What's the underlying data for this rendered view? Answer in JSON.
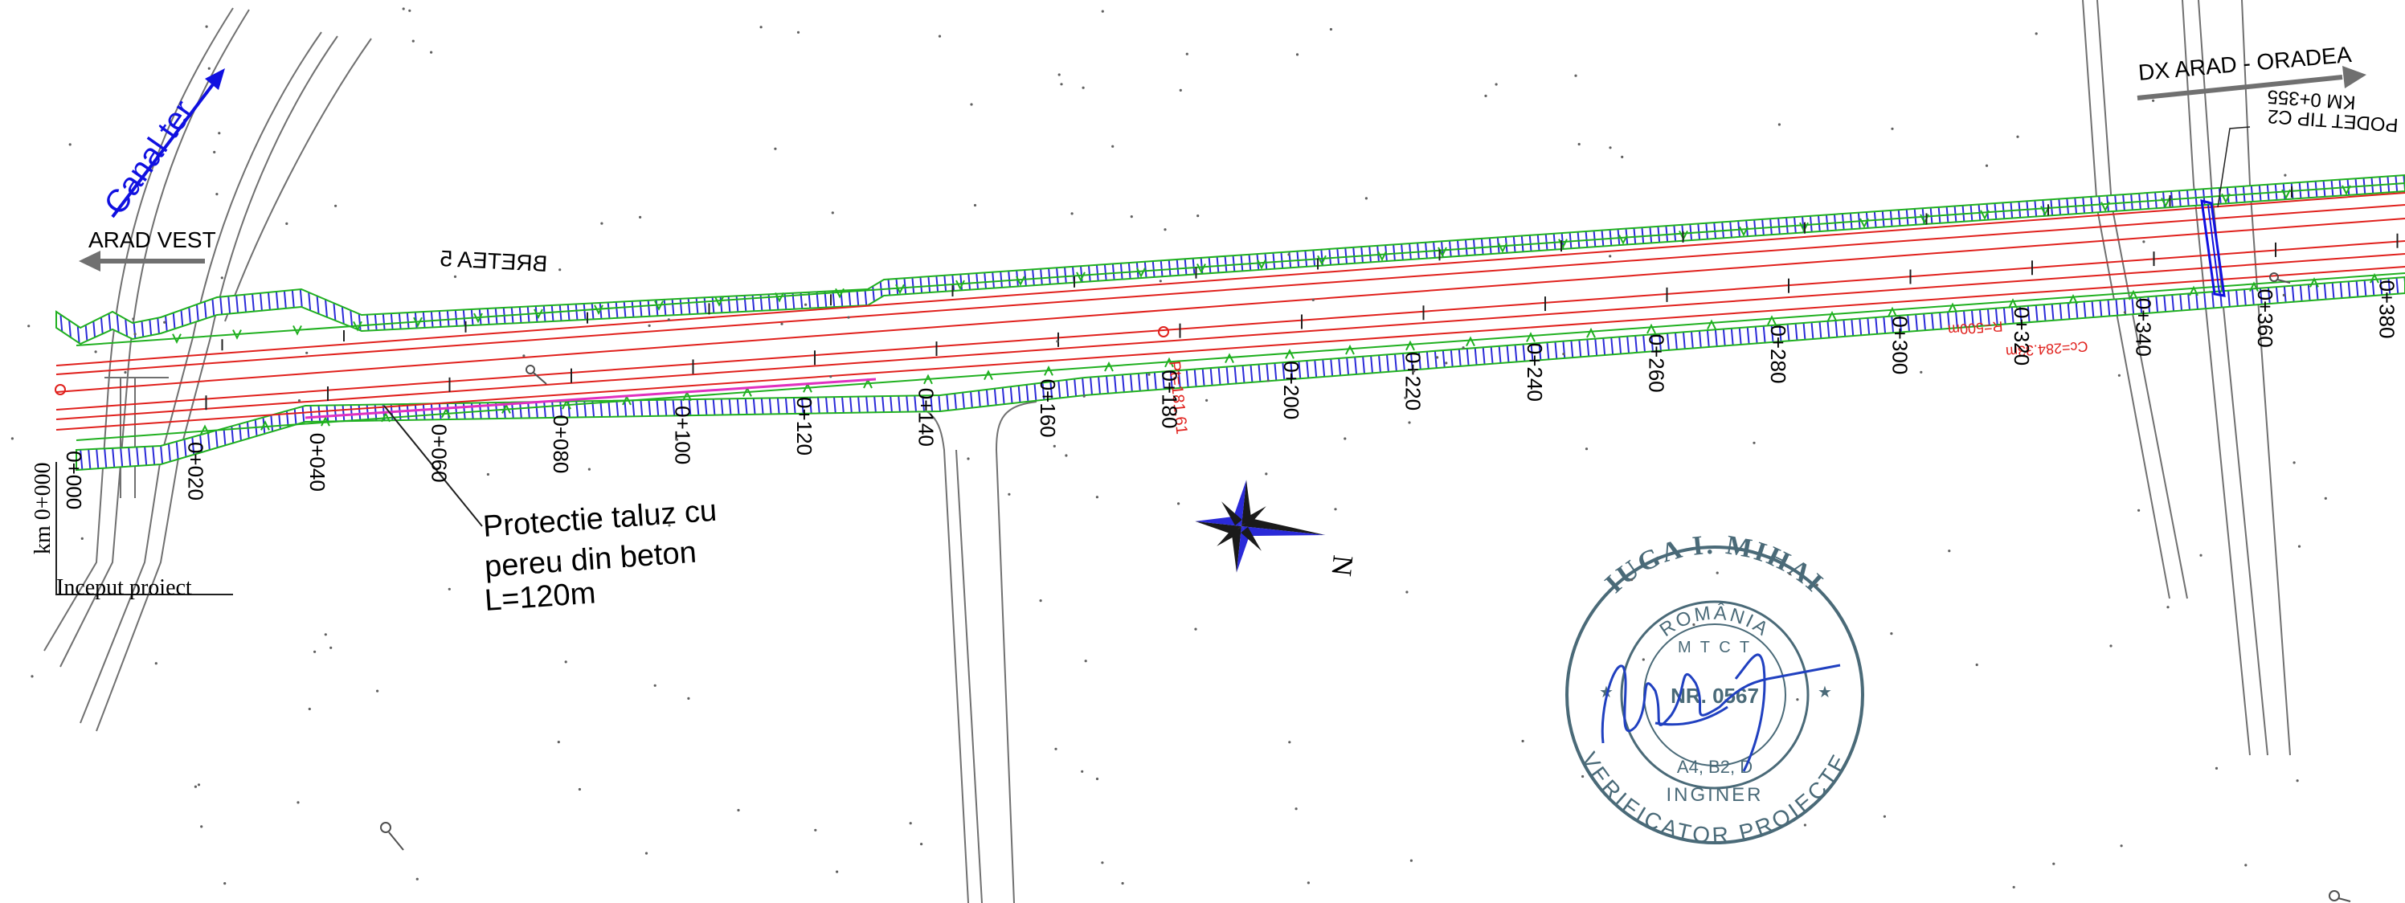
{
  "labels": {
    "canal": "Canal ter",
    "arad_vest": "ARAD VEST",
    "bretea": "BRETEA 5",
    "dx": "DX ARAD - ORADEA",
    "podet_line1": "PODET TIP C2",
    "podet_line2": "KM 0+355",
    "km_start": "km 0+000",
    "inceput": "Inceput proiect",
    "protectie_line1": "Protectie taluz cu",
    "protectie_line2": "pereu din beton",
    "protectie_line3": "L=120m",
    "north": "N",
    "curve_r": "R=500m",
    "curve_cc": "Cc=284.33m",
    "pt_label": "Pt=181.61"
  },
  "chainage": [
    "0+000",
    "0+020",
    "0+040",
    "0+060",
    "0+080",
    "0+100",
    "0+120",
    "0+140",
    "0+160",
    "0+180",
    "0+200",
    "0+220",
    "0+240",
    "0+260",
    "0+280",
    "0+300",
    "0+320",
    "0+340",
    "0+360",
    "0+380"
  ],
  "stamp": {
    "name": "IUGA I. MIHAI",
    "country": "ROMÂNIA",
    "ministry": "M T C T",
    "number": "NR. 0567",
    "categories": "A4, B2, D",
    "role1": "INGINER",
    "role2": "VERIFICATOR PROIECTE"
  },
  "colors": {
    "road_axis": "#e0201c",
    "hatch": "#2a2ad8",
    "edge_green": "#20b020",
    "pink_protection": "#e030c0",
    "linework": "#707070",
    "arrow_blue": "#1010e0",
    "stamp": "#4a6a78",
    "signature": "#2040c0"
  }
}
